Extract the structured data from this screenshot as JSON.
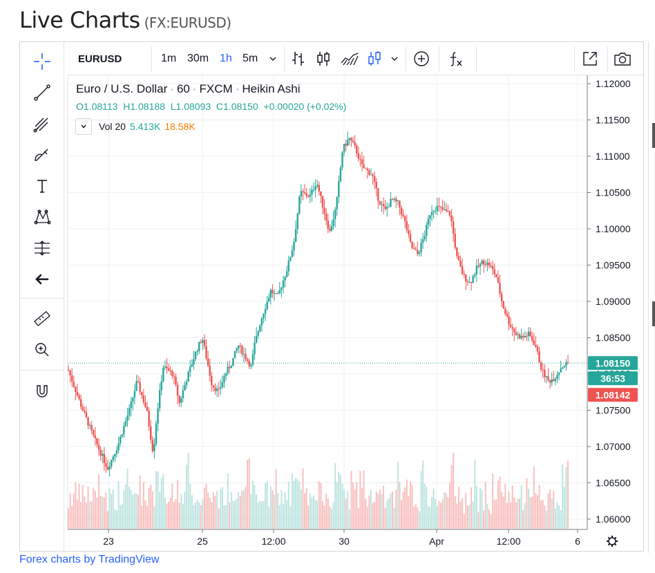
{
  "page": {
    "title": "Live Charts",
    "subtitle": "(FX:EURUSD)",
    "footer_link": "Forex charts by TradingView"
  },
  "toolbar": {
    "symbol": "EURUSD",
    "intervals": [
      "1m",
      "30m",
      "1h",
      "5m"
    ],
    "active_interval": "1h",
    "icons": [
      "chevron-down-icon",
      "bar-style-icon",
      "candle-style-icon",
      "area-style-icon",
      "heikin-ashi-style-icon",
      "chevron-down-icon",
      "add-compare-icon",
      "indicators-icon",
      "fullscreen-icon",
      "screenshot-icon"
    ]
  },
  "left_tools": [
    "crosshair-icon",
    "trendline-icon",
    "pitchfork-icon",
    "brush-icon",
    "text-icon",
    "pattern-icon",
    "projection-icon",
    "back-arrow-icon",
    "ruler-icon",
    "zoom-in-icon",
    "magnet-icon"
  ],
  "legend": {
    "title": "Euro / U.S. Dollar",
    "interval": "60",
    "source": "FXCM",
    "style": "Heikin Ashi",
    "ohlc": "O1.08113  H1.08188  L1.08093  C1.08150  +0.00020 (+0.02%)",
    "volume_label": "Vol 20",
    "volume_value": "5.413K",
    "volume_ma": "18.58K"
  },
  "price_tags": {
    "last": "1.08150",
    "countdown": "36:53",
    "bid": "1.08142"
  },
  "colors": {
    "up": "#26a69a",
    "down": "#ef5350",
    "up_volume": "#b2dfdb",
    "down_volume": "#f8b5b4",
    "grid": "#eef0f3",
    "accent": "#2962ff"
  },
  "chart_data": {
    "type": "candlestick",
    "style": "Heikin Ashi",
    "x_ticks": [
      "23",
      "25",
      "12:00",
      "30",
      "Apr",
      "12:00",
      "6"
    ],
    "y_ticks": [
      "1.12000",
      "1.11500",
      "1.11000",
      "1.10500",
      "1.10000",
      "1.09500",
      "1.09000",
      "1.08500",
      "1.08000",
      "1.07500",
      "1.07000",
      "1.06500",
      "1.06000"
    ],
    "ylim": [
      1.0585,
      1.1215
    ],
    "last_price": 1.0815,
    "path": [
      [
        0,
        1.0805
      ],
      [
        4,
        1.0755
      ],
      [
        8,
        1.071
      ],
      [
        12,
        1.067
      ],
      [
        15,
        1.07
      ],
      [
        19,
        1.0755
      ],
      [
        21,
        1.079
      ],
      [
        24,
        1.075
      ],
      [
        26,
        1.069
      ],
      [
        27,
        1.074
      ],
      [
        29,
        1.081
      ],
      [
        32,
        1.08
      ],
      [
        34,
        1.076
      ],
      [
        36,
        1.079
      ],
      [
        39,
        1.083
      ],
      [
        41,
        1.085
      ],
      [
        44,
        1.0785
      ],
      [
        46,
        1.0775
      ],
      [
        48,
        1.08
      ],
      [
        50,
        1.0815
      ],
      [
        52,
        1.084
      ],
      [
        54,
        1.0825
      ],
      [
        56,
        1.081
      ],
      [
        57,
        1.084
      ],
      [
        59,
        1.0875
      ],
      [
        62,
        1.0915
      ],
      [
        64,
        1.0905
      ],
      [
        67,
        1.0945
      ],
      [
        69,
        1.098
      ],
      [
        71,
        1.105
      ],
      [
        74,
        1.1045
      ],
      [
        76,
        1.1065
      ],
      [
        78,
        1.103
      ],
      [
        80,
        1.0995
      ],
      [
        82,
        1.103
      ],
      [
        84,
        1.111
      ],
      [
        86,
        1.1125
      ],
      [
        88,
        1.111
      ],
      [
        90,
        1.1085
      ],
      [
        93,
        1.1075
      ],
      [
        95,
        1.104
      ],
      [
        97,
        1.1025
      ],
      [
        99,
        1.104
      ],
      [
        101,
        1.1035
      ],
      [
        103,
        1.101
      ],
      [
        105,
        1.0975
      ],
      [
        107,
        1.0965
      ],
      [
        109,
        1.099
      ],
      [
        111,
        1.1025
      ],
      [
        113,
        1.103
      ],
      [
        115,
        1.1025
      ],
      [
        117,
        1.102
      ],
      [
        119,
        1.096
      ],
      [
        121,
        1.0935
      ],
      [
        123,
        1.0925
      ],
      [
        125,
        1.0945
      ],
      [
        127,
        1.0955
      ],
      [
        129,
        1.095
      ],
      [
        131,
        1.0935
      ],
      [
        133,
        1.0895
      ],
      [
        135,
        1.087
      ],
      [
        137,
        1.0855
      ],
      [
        139,
        1.085
      ],
      [
        141,
        1.0855
      ],
      [
        143,
        1.084
      ],
      [
        145,
        1.0805
      ],
      [
        147,
        1.079
      ],
      [
        149,
        1.0795
      ],
      [
        151,
        1.081
      ],
      [
        153,
        1.0815
      ]
    ],
    "volume_ylim": [
      0,
      1
    ]
  }
}
